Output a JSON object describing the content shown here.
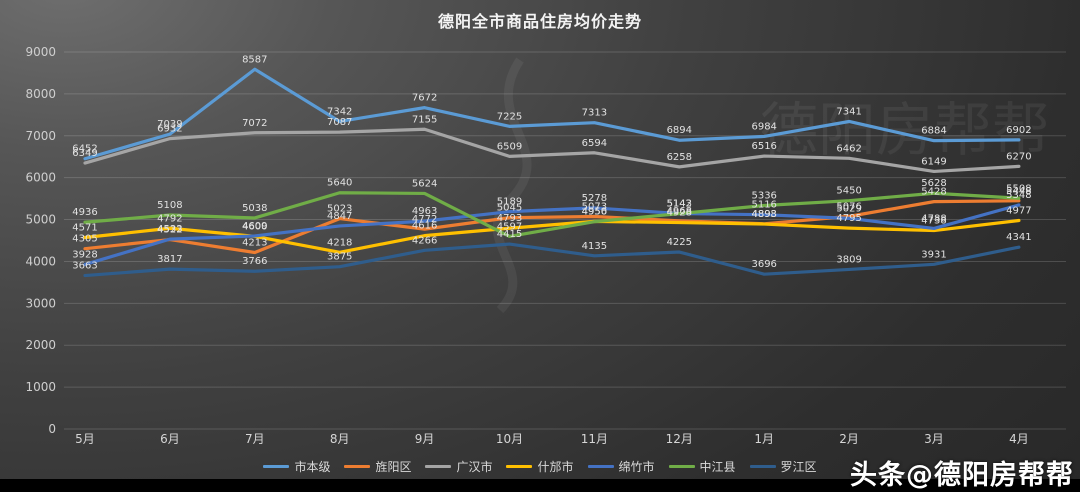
{
  "title": "德阳全市商品住房均价走势",
  "credit": "头条@德阳房帮帮",
  "chart_data": {
    "type": "line",
    "title": "德阳全市商品住房均价走势",
    "categories": [
      "5月",
      "6月",
      "7月",
      "8月",
      "9月",
      "10月",
      "11月",
      "12月",
      "1月",
      "2月",
      "3月",
      "4月"
    ],
    "series": [
      {
        "name": "市本级",
        "color": "#5B9BD5",
        "values": [
          6452,
          7039,
          8587,
          7342,
          7672,
          7225,
          7313,
          6894,
          6984,
          7341,
          6884,
          6902
        ]
      },
      {
        "name": "旌阳区",
        "color": "#ED7D31",
        "values": [
          4305,
          4522,
          4213,
          5023,
          4772,
          5045,
          5073,
          4968,
          4898,
          5076,
          5428,
          5448
        ]
      },
      {
        "name": "广汉市",
        "color": "#A5A5A5",
        "values": [
          6349,
          6932,
          7072,
          7087,
          7155,
          6509,
          6594,
          6258,
          6516,
          6462,
          6149,
          6270
        ]
      },
      {
        "name": "什邡市",
        "color": "#FFC000",
        "values": [
          4571,
          4792,
          4600,
          4218,
          4616,
          4793,
          4956,
          4928,
          4893,
          4795,
          4738,
          4977
        ]
      },
      {
        "name": "绵竹市",
        "color": "#4472C4",
        "values": [
          3928,
          4533,
          4609,
          4847,
          4963,
          5189,
          5278,
          5143,
          5116,
          5029,
          4788,
          5348
        ]
      },
      {
        "name": "中江县",
        "color": "#70AD47",
        "values": [
          4936,
          5108,
          5038,
          5640,
          5624,
          4597,
          4950,
          5142,
          5336,
          5450,
          5628,
          5508
        ]
      },
      {
        "name": "罗江区",
        "color": "#2F5D8C",
        "values": [
          3663,
          3817,
          3766,
          3875,
          4266,
          4415,
          4135,
          4225,
          3696,
          3809,
          3931,
          4341
        ]
      }
    ],
    "ylim": [
      0,
      9000
    ],
    "ytick_step": 1000,
    "grid": true,
    "legend_position": "bottom",
    "data_labels": true,
    "background": "dark-gray-gradient"
  }
}
